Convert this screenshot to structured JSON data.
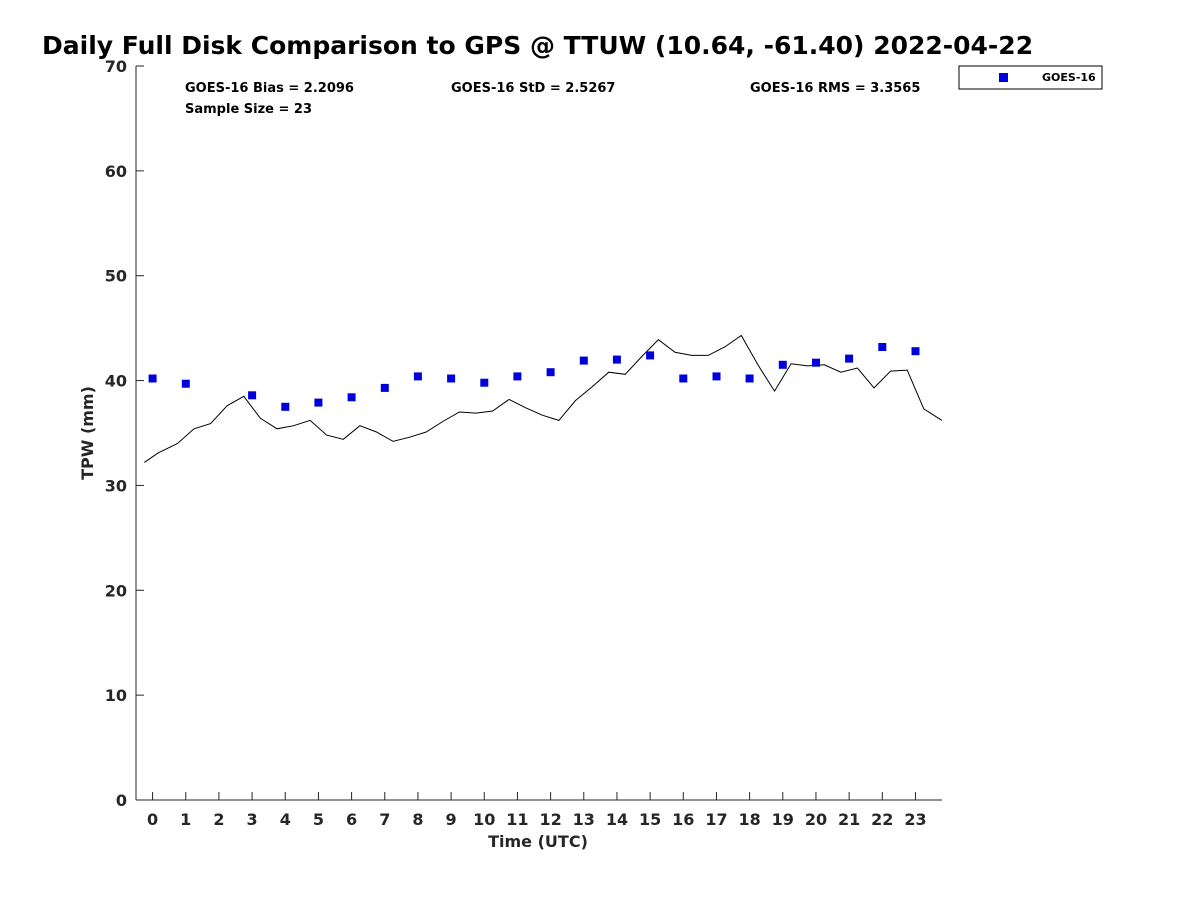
{
  "chart_data": {
    "type": "scatter",
    "title": "Daily Full Disk Comparison to GPS @ TTUW (10.64, -61.40) 2022-04-22",
    "xlabel": "Time (UTC)",
    "ylabel": "TPW (mm)",
    "xlim": [
      -0.5,
      23.8
    ],
    "ylim": [
      0,
      70
    ],
    "x_ticks": [
      "0",
      "1",
      "2",
      "3",
      "4",
      "5",
      "6",
      "7",
      "8",
      "9",
      "10",
      "11",
      "12",
      "13",
      "14",
      "15",
      "16",
      "17",
      "18",
      "19",
      "20",
      "21",
      "22",
      "23"
    ],
    "y_ticks": [
      "0",
      "10",
      "20",
      "30",
      "40",
      "50",
      "60",
      "70"
    ],
    "grid": false,
    "legend_position": "top-right",
    "stats": {
      "bias": "GOES-16 Bias = 2.2096",
      "std": "GOES-16 StD = 2.5267",
      "rms": "GOES-16 RMS = 3.3565",
      "sample": "Sample Size = 23"
    },
    "series": [
      {
        "name": "GOES-16",
        "type": "scatter",
        "color": "#0000dd",
        "x": [
          0,
          1,
          3,
          4,
          5,
          6,
          7,
          8,
          9,
          10,
          11,
          12,
          13,
          14,
          15,
          16,
          17,
          18,
          19,
          20,
          21,
          22,
          23
        ],
        "y": [
          40.2,
          39.7,
          38.6,
          37.5,
          37.9,
          38.4,
          39.3,
          40.4,
          40.2,
          39.8,
          40.4,
          40.8,
          41.9,
          42.0,
          42.4,
          40.2,
          40.4,
          40.2,
          41.5,
          41.7,
          42.1,
          43.2,
          42.8
        ]
      },
      {
        "type": "line",
        "color": "#000000",
        "x": [
          -0.25,
          0.17,
          0.75,
          1.25,
          1.75,
          2.25,
          2.75,
          3.25,
          3.75,
          4.25,
          4.75,
          5.25,
          5.75,
          6.25,
          6.75,
          7.25,
          7.75,
          8.25,
          8.75,
          9.25,
          9.75,
          10.25,
          10.75,
          11.25,
          11.75,
          12.25,
          12.75,
          13.25,
          13.75,
          14.25,
          14.75,
          15.25,
          15.75,
          16.25,
          16.75,
          17.25,
          17.75,
          18.25,
          18.75,
          19.25,
          19.75,
          20.25,
          20.75,
          21.25,
          21.75,
          22.25,
          22.75,
          23.25,
          23.8
        ],
        "y": [
          32.2,
          33.1,
          34.0,
          35.4,
          35.9,
          37.6,
          38.5,
          36.4,
          35.4,
          35.7,
          36.2,
          34.8,
          34.4,
          35.7,
          35.1,
          34.2,
          34.6,
          35.1,
          36.1,
          37.0,
          36.9,
          37.1,
          38.2,
          37.4,
          36.7,
          36.2,
          38.1,
          39.4,
          40.8,
          40.6,
          42.3,
          43.9,
          42.7,
          42.4,
          42.4,
          43.2,
          44.3,
          41.5,
          39.0,
          41.6,
          41.4,
          41.5,
          40.8,
          41.2,
          39.3,
          40.9,
          41.0,
          37.3,
          36.2
        ]
      }
    ]
  }
}
